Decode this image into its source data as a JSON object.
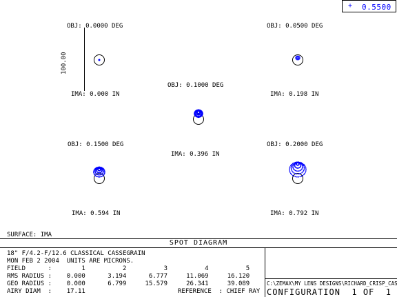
{
  "wavelength": "0.5500",
  "scale_bar_label": "100.00",
  "fields": [
    {
      "obj": "OBJ: 0.0000 DEG",
      "ima": "IMA: 0.000 IN"
    },
    {
      "obj": "OBJ: 0.0500 DEG",
      "ima": "IMA: 0.198 IN"
    },
    {
      "obj": "OBJ: 0.1000 DEG",
      "ima": "IMA: 0.396 IN"
    },
    {
      "obj": "OBJ: 0.1500 DEG",
      "ima": "IMA: 0.594 IN"
    },
    {
      "obj": "OBJ: 0.2000 DEG",
      "ima": "IMA: 0.792 IN"
    }
  ],
  "surface": "SURFACE: IMA",
  "diagram_title": "SPOT DIAGRAM",
  "info": {
    "line1": "18\" F/4.2-F/12.6 CLASSICAL CASSEGRAIN",
    "line2": "MON FEB 2 2004  UNITS ARE MICRONS.",
    "field_row": "FIELD      :        1          2          3          4          5",
    "rms_row": "RMS RADIUS :    0.000      3.194      6.777     11.069     16.120",
    "geo_row": "GEO RADIUS :    0.000      6.799     15.579     26.341     39.089",
    "airy_row": "AIRY DIAM  :    17.11",
    "reference": "REFERENCE  : CHIEF RAY"
  },
  "file_path": "C:\\ZEMAX\\MY LENS DESIGNS\\RICHARD_CRISP_CASS.ZMX",
  "configuration": "CONFIGURATION  1 OF  1",
  "colors": {
    "spot": "#0000ff",
    "line": "#000000"
  }
}
